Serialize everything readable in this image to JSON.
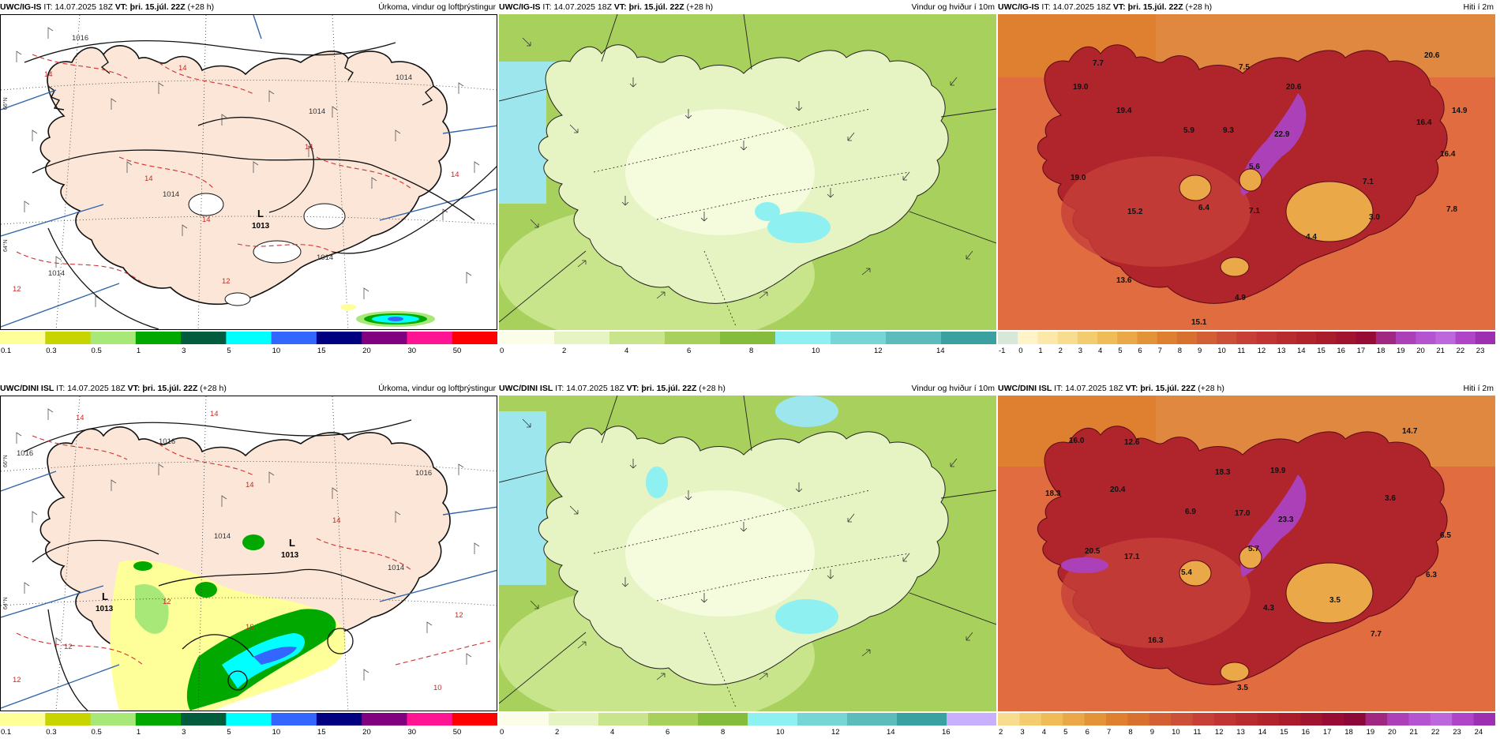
{
  "rows": [
    {
      "model": "UWC/IG-IS",
      "panels": [
        {
          "kind": "precip",
          "right": "Úrkoma, vindur og loftþrýstingur"
        },
        {
          "kind": "wind",
          "right": "Vindur og hviður í 10m"
        },
        {
          "kind": "temp",
          "right": "Hiti í 2m"
        }
      ]
    },
    {
      "model": "UWC/DINI ISL",
      "panels": [
        {
          "kind": "precip",
          "right": "Úrkoma, vindur og loftþrýstingur"
        },
        {
          "kind": "wind",
          "right": "Vindur og hviður í 10m"
        },
        {
          "kind": "temp",
          "right": "Hiti í 2m"
        }
      ]
    }
  ],
  "it_label": "IT:",
  "it_value": "14.07.2025 18Z",
  "vt_label": "VT:",
  "vt_value": "þri. 15.júl. 22Z",
  "lead": "(+28 h)",
  "colorbars": {
    "precip": {
      "ticks": [
        "0.1",
        "0.3",
        "0.5",
        "1",
        "3",
        "5",
        "10",
        "15",
        "20",
        "30",
        "50"
      ],
      "colors": [
        "#ffff99",
        "#c8d400",
        "#a8e878",
        "#00a800",
        "#005c3c",
        "#00ffff",
        "#3366ff",
        "#000080",
        "#800080",
        "#ff1493",
        "#ff0000"
      ]
    },
    "wind_top": {
      "ticks": [
        "0",
        "2",
        "4",
        "6",
        "8",
        "10",
        "12",
        "14"
      ],
      "colors": [
        "#fbfde8",
        "#e6f3c2",
        "#c9e58c",
        "#a8d05c",
        "#86bc3c",
        "#8ef0f0",
        "#76d6d6",
        "#5cbcbc",
        "#3aa0a0"
      ]
    },
    "wind_bottom": {
      "ticks": [
        "0",
        "2",
        "4",
        "6",
        "8",
        "10",
        "12",
        "14",
        "16"
      ],
      "colors": [
        "#fbfde8",
        "#e6f3c2",
        "#c9e58c",
        "#a8d05c",
        "#86bc3c",
        "#8ef0f0",
        "#76d6d6",
        "#5cbcbc",
        "#3aa0a0",
        "#c8b0ff"
      ]
    },
    "temp_top": {
      "ticks": [
        "-1",
        "0",
        "1",
        "2",
        "3",
        "4",
        "5",
        "6",
        "7",
        "8",
        "9",
        "10",
        "11",
        "12",
        "13",
        "14",
        "15",
        "16",
        "17",
        "18",
        "19",
        "20",
        "21",
        "22",
        "23"
      ],
      "colors": [
        "#d8e8d8",
        "#fff4c8",
        "#fce8a8",
        "#f8dc90",
        "#f4cc70",
        "#efbc58",
        "#eaa848",
        "#e49438",
        "#de8030",
        "#d87030",
        "#d26034",
        "#cc5038",
        "#c64038",
        "#c03434",
        "#b82c30",
        "#b0242c",
        "#a81c2c",
        "#a01430",
        "#960c34",
        "#a02880",
        "#ac40b8",
        "#b454d0",
        "#bc68dc",
        "#b044c8",
        "#9c30b0"
      ]
    },
    "temp_bottom": {
      "ticks": [
        "2",
        "3",
        "4",
        "5",
        "6",
        "7",
        "8",
        "9",
        "10",
        "11",
        "12",
        "13",
        "14",
        "15",
        "16",
        "17",
        "18",
        "19",
        "20",
        "21",
        "22",
        "23",
        "24"
      ],
      "colors": [
        "#f8dc90",
        "#f4cc70",
        "#efbc58",
        "#eaa848",
        "#e49438",
        "#de8030",
        "#d87030",
        "#d26034",
        "#cc5038",
        "#c64038",
        "#c03434",
        "#b82c30",
        "#b0242c",
        "#a81c2c",
        "#a01430",
        "#960c34",
        "#8c0838",
        "#a02880",
        "#ac40b8",
        "#b454d0",
        "#bc68dc",
        "#b044c8",
        "#9c30b0"
      ]
    }
  },
  "precip_labels": {
    "top": {
      "lows": [
        {
          "L": "L",
          "p": "1013"
        }
      ],
      "isobars": [
        "1016",
        "1014",
        "1014",
        "1014",
        "1014",
        "1014"
      ],
      "isotherms": [
        "14",
        "14",
        "14",
        "14",
        "14",
        "14",
        "12",
        "12"
      ]
    },
    "bottom": {
      "lows": [
        {
          "L": "L",
          "p": "1013"
        },
        {
          "L": "L",
          "p": "1013"
        }
      ],
      "isobars": [
        "1016",
        "1016",
        "1014",
        "1014",
        "1016"
      ],
      "isotherms": [
        "14",
        "14",
        "14",
        "14",
        "12",
        "12",
        "16",
        "12",
        "10",
        "12"
      ]
    }
  },
  "temp_values": {
    "top": [
      "7.7",
      "19.0",
      "19.4",
      "5.9",
      "7.5",
      "20.6",
      "20.6",
      "14.9",
      "9.3",
      "16.4",
      "22.9",
      "16.4",
      "19.0",
      "5.6",
      "7.1",
      "15.2",
      "6.4",
      "7.1",
      "3.0",
      "7.8",
      "4.4",
      "13.6",
      "4.9",
      "15.1"
    ],
    "bottom": [
      "16.0",
      "12.6",
      "14.7",
      "18.3",
      "20.4",
      "18.3",
      "19.9",
      "3.6",
      "6.9",
      "17.0",
      "23.3",
      "6.5",
      "20.5",
      "5.7",
      "17.1",
      "5.4",
      "6.3",
      "4.3",
      "3.5",
      "16.3",
      "7.7",
      "3.5"
    ]
  },
  "grid_labels": [
    "66°N",
    "65°N",
    "64°N"
  ]
}
